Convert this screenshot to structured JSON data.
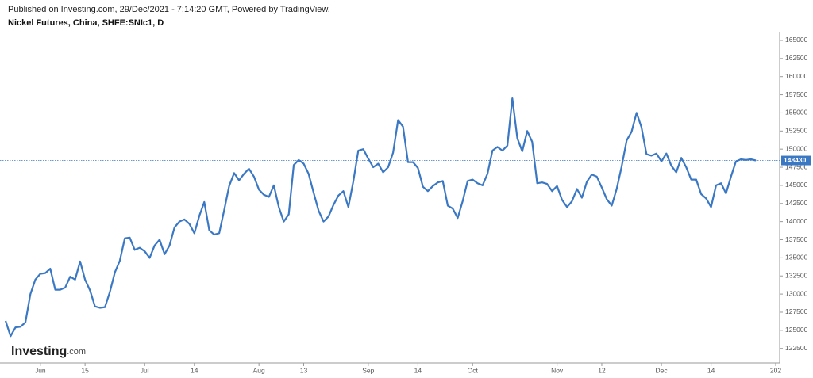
{
  "header": {
    "published": "Published on Investing.com, 29/Dec/2021 - 7:14:20 GMT, Powered by TradingView."
  },
  "logo": {
    "brand": "Investing",
    "suffix": ".com"
  },
  "chart_data": {
    "type": "line",
    "title": "Nickel Futures, China, SHFE:SNIc1, D",
    "color": "#3b78c4",
    "categories": [
      null,
      null,
      null,
      null,
      null,
      null,
      null,
      "Jun",
      null,
      null,
      null,
      null,
      null,
      null,
      null,
      null,
      "15",
      null,
      null,
      null,
      null,
      null,
      null,
      null,
      null,
      null,
      null,
      null,
      "Jul",
      null,
      null,
      null,
      null,
      null,
      null,
      null,
      null,
      null,
      "14",
      null,
      null,
      null,
      null,
      null,
      null,
      null,
      null,
      null,
      null,
      null,
      null,
      "Aug",
      null,
      null,
      null,
      null,
      null,
      null,
      null,
      null,
      "13",
      null,
      null,
      null,
      null,
      null,
      null,
      null,
      null,
      null,
      null,
      null,
      null,
      "Sep",
      null,
      null,
      null,
      null,
      null,
      null,
      null,
      null,
      null,
      "14",
      null,
      null,
      null,
      null,
      null,
      null,
      null,
      null,
      null,
      null,
      "Oct",
      null,
      null,
      null,
      null,
      null,
      null,
      null,
      null,
      null,
      null,
      null,
      null,
      null,
      null,
      null,
      null,
      "Nov",
      null,
      null,
      null,
      null,
      null,
      null,
      null,
      null,
      "12",
      null,
      null,
      null,
      null,
      null,
      null,
      null,
      null,
      null,
      null,
      null,
      "Dec",
      null,
      null,
      null,
      null,
      null,
      null,
      null,
      null,
      null,
      "14",
      null,
      null,
      null,
      null,
      null,
      null,
      null,
      null,
      null,
      null,
      null,
      null,
      "202"
    ],
    "values": [
      126300,
      124200,
      125400,
      125500,
      126100,
      130000,
      132000,
      132800,
      132900,
      133500,
      130600,
      130600,
      130900,
      132400,
      132000,
      134500,
      132000,
      130500,
      128300,
      128100,
      128200,
      130300,
      133000,
      134600,
      137700,
      137800,
      136100,
      136400,
      135900,
      135000,
      136700,
      137500,
      135500,
      136700,
      139200,
      140000,
      140300,
      139700,
      138400,
      140800,
      142700,
      138800,
      138200,
      138400,
      141600,
      144900,
      146700,
      145700,
      146600,
      147300,
      146200,
      144400,
      143700,
      143400,
      145000,
      142000,
      140000,
      141000,
      147800,
      148500,
      148000,
      146600,
      144000,
      141500,
      140000,
      140700,
      142300,
      143600,
      144200,
      142000,
      145600,
      149800,
      150000,
      148700,
      147500,
      148000,
      146800,
      147500,
      149500,
      154000,
      153100,
      148200,
      148200,
      147400,
      144800,
      144200,
      144900,
      145400,
      145600,
      142200,
      141800,
      140500,
      142800,
      145600,
      145800,
      145300,
      145000,
      146600,
      149800,
      150300,
      149800,
      150500,
      157000,
      151500,
      149700,
      152500,
      151000,
      145300,
      145400,
      145200,
      144200,
      144900,
      143000,
      142000,
      142800,
      144500,
      143300,
      145500,
      146500,
      146200,
      144700,
      143100,
      142200,
      144500,
      147600,
      151200,
      152400,
      155000,
      153000,
      149300,
      149100,
      149400,
      148300,
      149400,
      147700,
      146800,
      148800,
      147500,
      145800,
      145800,
      143800,
      143200,
      142000,
      145000,
      145300,
      143900,
      146200,
      148300,
      148600,
      148500,
      148600,
      148430,
      null,
      null,
      null,
      null
    ],
    "ylim": [
      120500,
      166200
    ],
    "yticks": [
      122500,
      125000,
      127500,
      130000,
      132500,
      135000,
      137500,
      140000,
      142500,
      145000,
      147500,
      150000,
      152500,
      155000,
      157500,
      160000,
      162500,
      165000
    ]
  }
}
